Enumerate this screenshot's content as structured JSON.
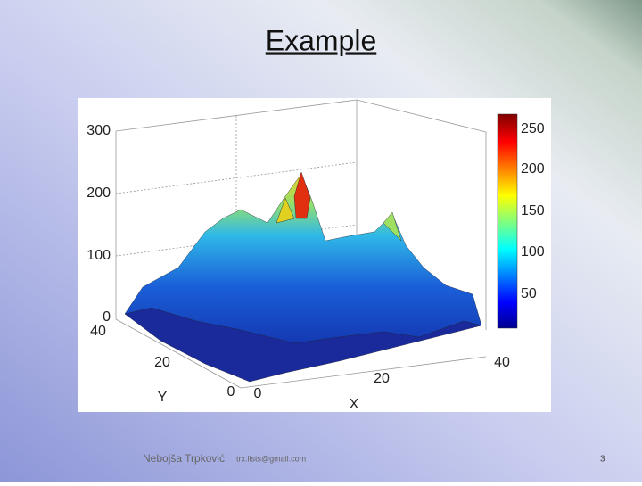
{
  "slide": {
    "title": "Example",
    "figure": {
      "z_ticks": [
        300,
        200,
        100,
        0
      ],
      "y_ticks": [
        40,
        20,
        0
      ],
      "y_label": "Y",
      "x_ticks": [
        0,
        20,
        40
      ],
      "x_label": "X",
      "colorbar_ticks": [
        250,
        200,
        150,
        100,
        50
      ]
    },
    "footer": {
      "author": "Nebojša Trpković",
      "email": "trx.lists@gmail.com",
      "page": "3"
    }
  }
}
